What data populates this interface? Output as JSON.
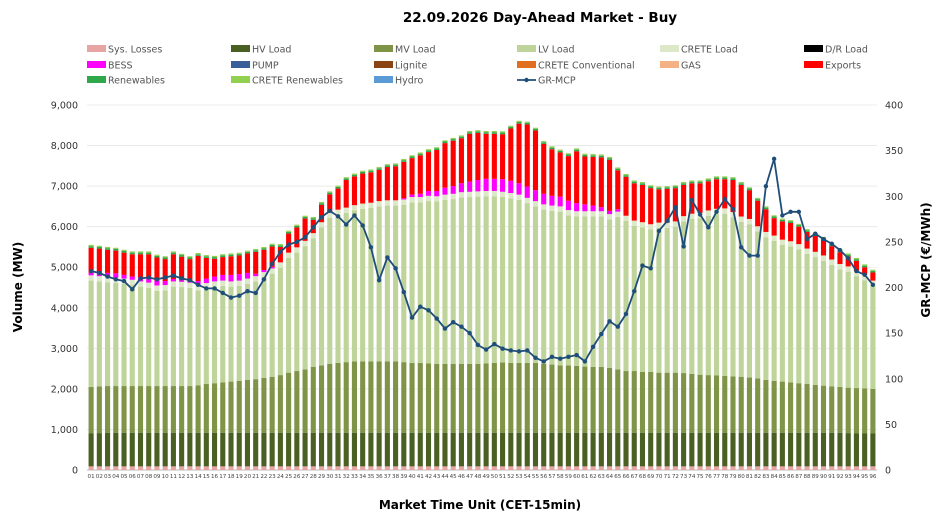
{
  "chart_data": {
    "type": "bar",
    "title": "22.09.2026  Day-Ahead Market - Buy",
    "xlabel": "Market Time Unit (CET-15min)",
    "ylabel": "Volume (MW)",
    "y2label": "GR-MCP (€/MWh)",
    "ylim": [
      0,
      9000
    ],
    "y2lim": [
      0,
      400
    ],
    "yticks": [
      "0",
      "1,000",
      "2,000",
      "3,000",
      "4,000",
      "5,000",
      "6,000",
      "7,000",
      "8,000",
      "9,000"
    ],
    "y2ticks": [
      "0",
      "50",
      "100",
      "150",
      "200",
      "250",
      "300",
      "350",
      "400"
    ],
    "categories": [
      "01",
      "02",
      "03",
      "04",
      "05",
      "06",
      "07",
      "08",
      "09",
      "10",
      "11",
      "12",
      "13",
      "14",
      "15",
      "16",
      "17",
      "18",
      "19",
      "20",
      "21",
      "22",
      "23",
      "24",
      "25",
      "26",
      "27",
      "28",
      "29",
      "30",
      "31",
      "32",
      "33",
      "34",
      "35",
      "36",
      "37",
      "38",
      "39",
      "40",
      "41",
      "42",
      "43",
      "44",
      "45",
      "46",
      "47",
      "48",
      "49",
      "50",
      "51",
      "52",
      "53",
      "54",
      "55",
      "56",
      "57",
      "58",
      "59",
      "60",
      "61",
      "62",
      "63",
      "64",
      "65",
      "66",
      "67",
      "68",
      "69",
      "70",
      "71",
      "72",
      "73",
      "74",
      "75",
      "76",
      "77",
      "78",
      "79",
      "80",
      "81",
      "82",
      "83",
      "84",
      "85",
      "86",
      "87",
      "88",
      "89",
      "90",
      "91",
      "92",
      "93",
      "94",
      "95",
      "96"
    ],
    "legend": [
      {
        "name": "Sys. Losses",
        "color": "#e8a3a3"
      },
      {
        "name": "HV Load",
        "color": "#4a5f22"
      },
      {
        "name": "MV Load",
        "color": "#7f9447"
      },
      {
        "name": "LV Load",
        "color": "#bfd49a"
      },
      {
        "name": "CRETE Load",
        "color": "#dde8c8"
      },
      {
        "name": "D/R Load",
        "color": "#000000"
      },
      {
        "name": "BESS",
        "color": "#ff00ff"
      },
      {
        "name": "PUMP",
        "color": "#3a5f98"
      },
      {
        "name": "Lignite",
        "color": "#8b4513"
      },
      {
        "name": "CRETE Conventional",
        "color": "#e07020"
      },
      {
        "name": "GAS",
        "color": "#f4b183"
      },
      {
        "name": "Exports",
        "color": "#ff0000"
      },
      {
        "name": "Renewables",
        "color": "#2ea84a"
      },
      {
        "name": "CRETE Renewables",
        "color": "#92d050"
      },
      {
        "name": "Hydro",
        "color": "#5b9bd5"
      },
      {
        "name": "GR-MCP",
        "color": "#1f4e79"
      }
    ],
    "series": [
      {
        "name": "Sys. Losses",
        "values": [
          90,
          90,
          90,
          90,
          90,
          90,
          90,
          90,
          90,
          90,
          90,
          90,
          90,
          90,
          90,
          90,
          90,
          90,
          90,
          90,
          90,
          90,
          90,
          90,
          90,
          90,
          90,
          90,
          90,
          90,
          90,
          90,
          90,
          90,
          90,
          90,
          90,
          90,
          90,
          90,
          90,
          90,
          90,
          90,
          90,
          90,
          90,
          90,
          90,
          90,
          90,
          90,
          90,
          90,
          90,
          90,
          90,
          90,
          90,
          90,
          90,
          90,
          90,
          90,
          90,
          90,
          90,
          90,
          90,
          90,
          90,
          90,
          90,
          90,
          90,
          90,
          90,
          90,
          90,
          90,
          90,
          90,
          90,
          90,
          90,
          90,
          90,
          90,
          90,
          90,
          90,
          90,
          90,
          90,
          90,
          90
        ]
      },
      {
        "name": "HV Load",
        "values": [
          810,
          820,
          830,
          830,
          830,
          830,
          830,
          830,
          830,
          830,
          830,
          830,
          830,
          830,
          830,
          830,
          830,
          830,
          830,
          830,
          830,
          830,
          830,
          830,
          830,
          830,
          830,
          830,
          830,
          830,
          830,
          830,
          830,
          830,
          830,
          830,
          830,
          830,
          830,
          830,
          830,
          830,
          830,
          830,
          830,
          830,
          830,
          830,
          830,
          830,
          830,
          830,
          830,
          830,
          830,
          830,
          830,
          830,
          830,
          830,
          830,
          830,
          830,
          830,
          830,
          830,
          830,
          830,
          830,
          830,
          830,
          830,
          830,
          830,
          830,
          830,
          830,
          830,
          830,
          830,
          830,
          830,
          830,
          830,
          830,
          830,
          830,
          830,
          830,
          830,
          830,
          830,
          820,
          810,
          810,
          810
        ]
      },
      {
        "name": "MV Load",
        "values": [
          1150,
          1150,
          1150,
          1150,
          1150,
          1150,
          1150,
          1150,
          1150,
          1150,
          1150,
          1150,
          1150,
          1170,
          1200,
          1220,
          1240,
          1260,
          1280,
          1300,
          1320,
          1350,
          1380,
          1420,
          1480,
          1520,
          1560,
          1620,
          1660,
          1700,
          1720,
          1740,
          1760,
          1760,
          1760,
          1760,
          1760,
          1760,
          1740,
          1720,
          1720,
          1710,
          1700,
          1700,
          1700,
          1700,
          1700,
          1700,
          1710,
          1720,
          1730,
          1720,
          1720,
          1720,
          1720,
          1700,
          1680,
          1660,
          1660,
          1650,
          1630,
          1620,
          1620,
          1600,
          1560,
          1520,
          1520,
          1500,
          1500,
          1480,
          1480,
          1480,
          1470,
          1450,
          1430,
          1420,
          1410,
          1400,
          1390,
          1380,
          1360,
          1340,
          1300,
          1280,
          1260,
          1240,
          1220,
          1200,
          1180,
          1160,
          1140,
          1130,
          1120,
          1120,
          1110,
          1100
        ]
      },
      {
        "name": "LV Load",
        "values": [
          2620,
          2590,
          2560,
          2540,
          2520,
          2490,
          2450,
          2420,
          2350,
          2360,
          2450,
          2440,
          2420,
          2340,
          2360,
          2380,
          2380,
          2340,
          2340,
          2370,
          2410,
          2480,
          2540,
          2650,
          2830,
          2920,
          3040,
          3170,
          3400,
          3600,
          3650,
          3680,
          3720,
          3760,
          3780,
          3820,
          3840,
          3840,
          3880,
          3960,
          3960,
          4000,
          4000,
          4040,
          4060,
          4100,
          4110,
          4120,
          4120,
          4110,
          4080,
          4060,
          4020,
          3940,
          3860,
          3800,
          3790,
          3790,
          3700,
          3680,
          3700,
          3710,
          3710,
          3660,
          3760,
          3700,
          3580,
          3560,
          3510,
          3570,
          3570,
          3600,
          3740,
          3820,
          3860,
          3930,
          3980,
          4000,
          3920,
          3820,
          3780,
          3620,
          3520,
          3450,
          3370,
          3350,
          3300,
          3210,
          3150,
          3080,
          3000,
          2900,
          2860,
          2760,
          2670,
          2540
        ]
      },
      {
        "name": "CRETE Load",
        "values": [
          130,
          130,
          130,
          130,
          130,
          130,
          130,
          130,
          130,
          130,
          130,
          130,
          130,
          130,
          130,
          130,
          130,
          130,
          130,
          130,
          130,
          130,
          130,
          130,
          130,
          130,
          130,
          130,
          130,
          130,
          130,
          130,
          130,
          130,
          130,
          130,
          130,
          130,
          130,
          130,
          130,
          130,
          130,
          130,
          130,
          130,
          130,
          130,
          130,
          130,
          130,
          130,
          130,
          130,
          130,
          130,
          130,
          130,
          130,
          130,
          130,
          130,
          130,
          130,
          130,
          130,
          130,
          130,
          130,
          130,
          130,
          130,
          130,
          130,
          130,
          130,
          130,
          130,
          130,
          130,
          130,
          130,
          130,
          130,
          130,
          130,
          130,
          130,
          130,
          130,
          130,
          130,
          130,
          130,
          130,
          130
        ]
      },
      {
        "name": "BESS",
        "values": [
          60,
          80,
          100,
          110,
          90,
          80,
          100,
          110,
          120,
          100,
          60,
          40,
          30,
          100,
          110,
          120,
          140,
          160,
          160,
          140,
          60,
          50,
          40,
          0,
          0,
          0,
          0,
          0,
          0,
          0,
          0,
          0,
          0,
          0,
          0,
          0,
          0,
          0,
          30,
          60,
          80,
          120,
          130,
          170,
          190,
          220,
          250,
          280,
          300,
          300,
          310,
          300,
          280,
          280,
          270,
          260,
          240,
          240,
          230,
          200,
          170,
          140,
          100,
          80,
          60,
          0,
          0,
          0,
          0,
          0,
          0,
          0,
          0,
          0,
          0,
          0,
          0,
          0,
          0,
          0,
          0,
          0,
          0,
          0,
          0,
          0,
          0,
          0,
          0,
          0,
          0,
          0,
          0,
          0,
          0,
          0
        ]
      },
      {
        "name": "Exports",
        "values": [
          620,
          600,
          570,
          560,
          550,
          550,
          570,
          590,
          570,
          540,
          610,
          580,
          550,
          620,
          510,
          440,
          440,
          460,
          460,
          480,
          540,
          500,
          500,
          380,
          470,
          490,
          550,
          330,
          430,
          450,
          520,
          680,
          710,
          740,
          750,
          770,
          820,
          840,
          900,
          900,
          950,
          960,
          1010,
          1100,
          1120,
          1110,
          1180,
          1160,
          1110,
          1110,
          1110,
          1290,
          1470,
          1530,
          1470,
          1230,
          1150,
          1090,
          1100,
          1280,
          1180,
          1200,
          1230,
          1260,
          960,
          960,
          920,
          920,
          890,
          820,
          830,
          820,
          770,
          750,
          730,
          720,
          730,
          720,
          790,
          780,
          710,
          630,
          560,
          430,
          450,
          450,
          430,
          410,
          390,
          390,
          330,
          290,
          250,
          250,
          190,
          200
        ]
      },
      {
        "name": "Renewables",
        "values": [
          40,
          40,
          40,
          40,
          40,
          40,
          40,
          40,
          40,
          40,
          40,
          40,
          40,
          40,
          40,
          40,
          40,
          40,
          40,
          40,
          40,
          40,
          40,
          40,
          40,
          40,
          40,
          40,
          40,
          40,
          40,
          40,
          40,
          40,
          40,
          40,
          40,
          40,
          40,
          40,
          40,
          40,
          40,
          40,
          40,
          40,
          40,
          40,
          40,
          40,
          40,
          40,
          40,
          40,
          40,
          40,
          40,
          40,
          40,
          40,
          40,
          40,
          40,
          40,
          40,
          40,
          40,
          40,
          40,
          40,
          40,
          40,
          40,
          40,
          40,
          40,
          40,
          40,
          40,
          40,
          40,
          40,
          40,
          40,
          40,
          40,
          40,
          40,
          40,
          40,
          40,
          40,
          40,
          40,
          40,
          40
        ]
      },
      {
        "name": "CRETE Renewables",
        "values": [
          30,
          30,
          30,
          30,
          30,
          30,
          30,
          30,
          30,
          30,
          30,
          30,
          30,
          30,
          30,
          30,
          30,
          30,
          30,
          30,
          30,
          30,
          30,
          30,
          30,
          30,
          30,
          30,
          30,
          30,
          30,
          30,
          30,
          30,
          30,
          30,
          30,
          30,
          30,
          30,
          30,
          30,
          30,
          30,
          30,
          30,
          30,
          30,
          30,
          30,
          30,
          30,
          30,
          30,
          30,
          30,
          30,
          30,
          30,
          30,
          30,
          30,
          30,
          30,
          30,
          30,
          30,
          30,
          30,
          30,
          30,
          30,
          30,
          30,
          30,
          30,
          30,
          30,
          30,
          30,
          30,
          30,
          30,
          30,
          30,
          30,
          30,
          30,
          30,
          30,
          30,
          30,
          30,
          30,
          30,
          30
        ]
      },
      {
        "name": "GR-MCP",
        "axis": "secondary",
        "values": [
          218,
          216,
          212,
          209,
          207,
          198,
          210,
          211,
          209,
          211,
          213,
          210,
          208,
          203,
          199,
          199,
          194,
          189,
          191,
          196,
          194,
          209,
          226,
          239,
          247,
          250,
          255,
          266,
          277,
          284,
          278,
          269,
          279,
          268,
          244,
          208,
          233,
          221,
          195,
          167,
          179,
          175,
          166,
          155,
          162,
          157,
          150,
          137,
          132,
          138,
          133,
          131,
          130,
          131,
          123,
          119,
          124,
          122,
          124,
          126,
          119,
          135,
          149,
          163,
          157,
          171,
          196,
          224,
          221,
          262,
          273,
          288,
          245,
          296,
          280,
          266,
          283,
          297,
          286,
          244,
          235,
          235,
          311,
          341,
          279,
          283,
          283,
          253,
          259,
          253,
          248,
          241,
          232,
          218,
          214,
          203
        ]
      }
    ]
  }
}
